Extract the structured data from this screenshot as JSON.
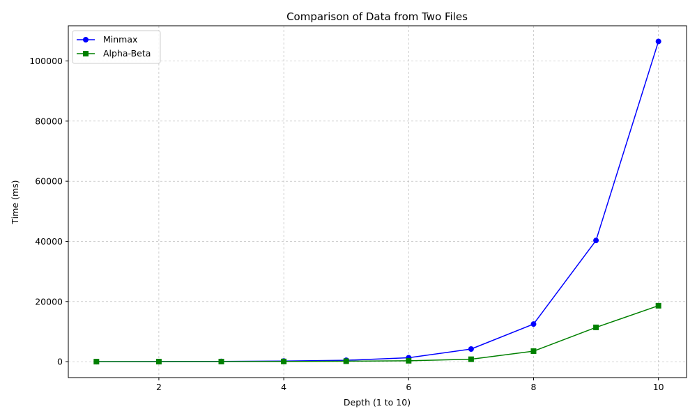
{
  "chart_data": {
    "type": "line",
    "title": "Comparison of Data from Two Files",
    "xlabel": "Depth (1 to 10)",
    "ylabel": "Time (ms)",
    "x": [
      1,
      2,
      3,
      4,
      5,
      6,
      7,
      8,
      9,
      10
    ],
    "xlim": [
      0.55,
      10.45
    ],
    "ylim": [
      -5300,
      111700
    ],
    "xticks": [
      2,
      4,
      6,
      8,
      10
    ],
    "yticks": [
      0,
      20000,
      40000,
      60000,
      80000,
      100000
    ],
    "grid": true,
    "legend_position": "top-left",
    "series": [
      {
        "name": "Minmax",
        "color": "#0000ff",
        "marker": "circle",
        "values": [
          5,
          30,
          100,
          200,
          450,
          1300,
          4200,
          12500,
          40300,
          106500
        ]
      },
      {
        "name": "Alpha-Beta",
        "color": "#008000",
        "marker": "square",
        "values": [
          2,
          10,
          30,
          60,
          150,
          300,
          800,
          3500,
          11400,
          18600
        ]
      }
    ]
  }
}
